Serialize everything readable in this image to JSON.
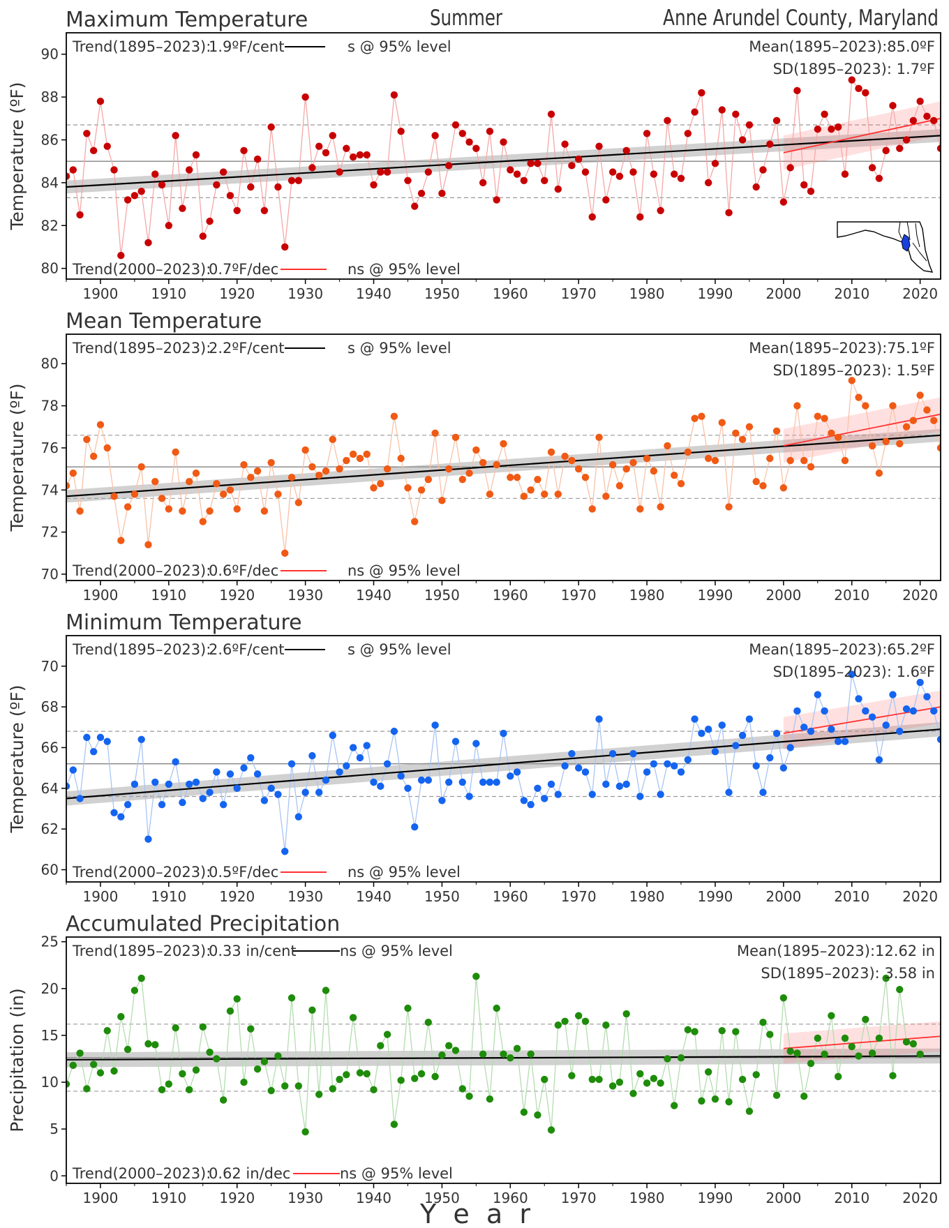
{
  "page": {
    "season": "Summer",
    "location": "Anne Arundel County, Maryland",
    "xlabel": "Y  e  a  r"
  },
  "chart_data": [
    {
      "type": "line",
      "title": "Maximum Temperature",
      "ylabel": "Temperature (ºF)",
      "color": "#c80000",
      "line_color": "#f4a8a8",
      "ylim": [
        79.5,
        91.0
      ],
      "yticks": [
        80,
        82,
        84,
        86,
        88,
        90
      ],
      "xlim": [
        1895,
        2023
      ],
      "xticks": [
        1900,
        1910,
        1920,
        1930,
        1940,
        1950,
        1960,
        1970,
        1980,
        1990,
        2000,
        2010,
        2020
      ],
      "mean": 85.0,
      "sd": 1.7,
      "mean_label": "Mean(1895–2023):85.0ºF",
      "sd_label": "SD(1895–2023): 1.7ºF",
      "trend_long_label": "Trend(1895–2023):",
      "trend_long_value": "1.9ºF/cent",
      "trend_long_sig": "s @ 95% level",
      "trend_short_label": "Trend(2000–2023):",
      "trend_short_value": "0.7ºF/dec",
      "trend_short_sig": "ns @ 95% level",
      "trend_long": {
        "start": 83.8,
        "end": 86.2,
        "band": 0.3
      },
      "trend_short": {
        "start": 85.4,
        "end": 87.0,
        "band": 0.8
      },
      "show_map": true,
      "x_start": 1895,
      "values": [
        84.3,
        84.6,
        82.5,
        86.3,
        85.5,
        87.8,
        85.7,
        84.6,
        80.6,
        83.2,
        83.4,
        83.6,
        81.2,
        84.4,
        83.9,
        82.0,
        86.2,
        82.8,
        84.6,
        85.3,
        81.5,
        82.2,
        83.9,
        84.5,
        83.4,
        82.7,
        85.5,
        83.8,
        85.1,
        82.7,
        86.6,
        83.8,
        81.0,
        84.1,
        84.1,
        88.0,
        84.7,
        85.7,
        85.4,
        86.2,
        84.5,
        85.6,
        85.2,
        85.3,
        85.3,
        83.9,
        84.5,
        84.5,
        88.1,
        86.4,
        84.1,
        82.9,
        83.5,
        84.5,
        86.2,
        83.5,
        84.8,
        86.7,
        86.3,
        85.9,
        85.6,
        84.0,
        86.4,
        83.2,
        85.9,
        84.6,
        84.4,
        84.1,
        84.9,
        84.9,
        84.1,
        87.2,
        83.7,
        85.8,
        84.8,
        85.1,
        84.5,
        82.4,
        85.7,
        83.2,
        84.5,
        84.3,
        85.5,
        84.5,
        82.4,
        86.3,
        84.4,
        82.7,
        86.9,
        84.4,
        84.2,
        86.3,
        87.3,
        88.2,
        84.0,
        84.9,
        87.4,
        82.6,
        87.2,
        86.0,
        86.7,
        83.8,
        84.6,
        85.8,
        86.9,
        83.1,
        84.7,
        88.3,
        83.9,
        83.6,
        86.5,
        87.2,
        86.5,
        86.6,
        84.4,
        88.8,
        88.4,
        88.2,
        84.7,
        84.2,
        85.5,
        87.6,
        85.6,
        86.0,
        86.9,
        87.8,
        87.1,
        86.9,
        85.6
      ]
    },
    {
      "type": "line",
      "title": "Mean Temperature",
      "ylabel": "Temperature (ºF)",
      "color": "#f05a14",
      "line_color": "#f8c2a8",
      "ylim": [
        69.7,
        81.4
      ],
      "yticks": [
        70,
        72,
        74,
        76,
        78,
        80
      ],
      "xlim": [
        1895,
        2023
      ],
      "xticks": [
        1900,
        1910,
        1920,
        1930,
        1940,
        1950,
        1960,
        1970,
        1980,
        1990,
        2000,
        2010,
        2020
      ],
      "mean": 75.1,
      "sd": 1.5,
      "mean_label": "Mean(1895–2023):75.1ºF",
      "sd_label": "SD(1895–2023): 1.5ºF",
      "trend_long_label": "Trend(1895–2023):",
      "trend_long_value": "2.2ºF/cent",
      "trend_long_sig": "s @ 95% level",
      "trend_short_label": "Trend(2000–2023):",
      "trend_short_value": "0.6ºF/dec",
      "trend_short_sig": "ns @ 95% level",
      "trend_long": {
        "start": 73.7,
        "end": 76.6,
        "band": 0.3
      },
      "trend_short": {
        "start": 76.1,
        "end": 77.6,
        "band": 0.8
      },
      "show_map": false,
      "x_start": 1895,
      "values": [
        74.2,
        74.8,
        73.0,
        76.4,
        75.6,
        77.1,
        76.0,
        73.7,
        71.6,
        73.2,
        73.8,
        75.1,
        71.4,
        74.4,
        73.6,
        73.1,
        75.8,
        73.0,
        74.4,
        74.8,
        72.5,
        73.0,
        74.3,
        73.8,
        74.0,
        73.1,
        75.2,
        74.6,
        74.9,
        73.0,
        75.3,
        73.8,
        71.0,
        74.6,
        73.4,
        75.9,
        75.1,
        74.7,
        74.9,
        76.4,
        75.0,
        75.4,
        75.7,
        75.5,
        75.7,
        74.1,
        74.3,
        75.0,
        77.5,
        75.5,
        74.1,
        72.5,
        74.0,
        74.5,
        76.7,
        73.5,
        75.0,
        76.5,
        74.5,
        74.8,
        75.9,
        75.3,
        73.8,
        75.2,
        76.2,
        74.6,
        74.6,
        73.7,
        74.0,
        74.5,
        73.8,
        75.8,
        73.8,
        75.6,
        75.4,
        75.0,
        74.6,
        73.1,
        76.5,
        73.7,
        75.2,
        74.2,
        75.0,
        75.3,
        73.1,
        75.5,
        74.9,
        73.2,
        76.1,
        74.7,
        74.3,
        75.8,
        77.4,
        77.5,
        75.5,
        75.4,
        77.2,
        73.2,
        76.7,
        76.4,
        77.0,
        74.4,
        74.2,
        75.5,
        76.8,
        74.1,
        75.4,
        78.0,
        75.4,
        75.1,
        77.5,
        77.4,
        76.7,
        76.5,
        75.4,
        79.2,
        78.4,
        78.0,
        76.1,
        74.8,
        76.3,
        78.0,
        76.2,
        77.0,
        77.3,
        78.5,
        77.8,
        77.3,
        76.0
      ]
    },
    {
      "type": "line",
      "title": "Minimum Temperature",
      "ylabel": "Temperature (ºF)",
      "color": "#1464f0",
      "line_color": "#a8c4f4",
      "ylim": [
        59.4,
        71.5
      ],
      "yticks": [
        60,
        62,
        64,
        66,
        68,
        70
      ],
      "xlim": [
        1895,
        2023
      ],
      "xticks": [
        1900,
        1910,
        1920,
        1930,
        1940,
        1950,
        1960,
        1970,
        1980,
        1990,
        2000,
        2010,
        2020
      ],
      "mean": 65.2,
      "sd": 1.6,
      "mean_label": "Mean(1895–2023):65.2ºF",
      "sd_label": "SD(1895–2023): 1.6ºF",
      "trend_long_label": "Trend(1895–2023):",
      "trend_long_value": "2.6ºF/cent",
      "trend_long_sig": "s @ 95% level",
      "trend_short_label": "Trend(2000–2023):",
      "trend_short_value": "0.5ºF/dec",
      "trend_short_sig": "ns @ 95% level",
      "trend_long": {
        "start": 63.5,
        "end": 66.9,
        "band": 0.35
      },
      "trend_short": {
        "start": 66.7,
        "end": 68.0,
        "band": 0.8
      },
      "show_map": false,
      "x_start": 1895,
      "values": [
        64.1,
        64.9,
        63.5,
        66.5,
        65.8,
        66.5,
        66.3,
        62.8,
        62.6,
        63.2,
        64.2,
        66.4,
        61.5,
        64.3,
        63.2,
        64.2,
        65.3,
        63.3,
        64.2,
        64.3,
        63.5,
        63.8,
        64.8,
        63.2,
        64.7,
        64.0,
        65.0,
        65.5,
        64.7,
        63.4,
        64.0,
        63.7,
        60.9,
        65.2,
        62.6,
        63.8,
        65.6,
        63.8,
        64.4,
        66.6,
        64.8,
        65.1,
        66.0,
        65.5,
        66.1,
        64.3,
        64.1,
        65.2,
        66.8,
        64.6,
        64.0,
        62.1,
        64.4,
        64.4,
        67.1,
        63.4,
        64.3,
        66.3,
        64.3,
        63.6,
        66.2,
        64.3,
        64.3,
        64.3,
        66.7,
        64.6,
        64.8,
        63.4,
        63.2,
        64.0,
        63.5,
        64.2,
        63.7,
        65.1,
        65.7,
        65.0,
        64.8,
        63.7,
        67.4,
        64.2,
        65.7,
        64.1,
        64.2,
        65.7,
        63.6,
        64.8,
        65.2,
        63.7,
        65.2,
        65.1,
        64.8,
        65.4,
        67.4,
        66.7,
        66.9,
        65.8,
        67.1,
        63.8,
        66.1,
        66.6,
        67.4,
        65.1,
        63.8,
        65.5,
        66.7,
        65.0,
        66.0,
        67.8,
        67.0,
        66.8,
        68.6,
        67.8,
        66.9,
        66.3,
        66.3,
        69.6,
        68.4,
        67.8,
        67.5,
        65.4,
        67.1,
        68.6,
        66.8,
        67.9,
        67.8,
        69.2,
        68.5,
        67.8,
        66.4
      ]
    },
    {
      "type": "line",
      "title": "Accumulated Precipitation",
      "ylabel": "Precipitation (in)",
      "color": "#1e8c0a",
      "line_color": "#b4dcb0",
      "ylim": [
        -0.8,
        25.5
      ],
      "yticks": [
        0,
        5,
        10,
        15,
        20,
        25
      ],
      "xlim": [
        1895,
        2023
      ],
      "xticks": [
        1900,
        1910,
        1920,
        1930,
        1940,
        1950,
        1960,
        1970,
        1980,
        1990,
        2000,
        2010,
        2020
      ],
      "mean": 12.62,
      "sd": 3.58,
      "mean_label": "Mean(1895–2023):12.62 in",
      "sd_label": "SD(1895–2023): 3.58 in",
      "trend_long_label": "Trend(1895–2023):",
      "trend_long_value": "0.33 in/cent",
      "trend_long_sig": "ns @ 95% level",
      "trend_short_label": "Trend(2000–2023):",
      "trend_short_value": "0.62 in/dec",
      "trend_short_sig": "ns @ 95% level",
      "trend_long": {
        "start": 12.4,
        "end": 12.8,
        "band": 0.8
      },
      "trend_short": {
        "start": 13.6,
        "end": 14.9,
        "band": 1.6
      },
      "show_map": false,
      "x_start": 1895,
      "values": [
        9.8,
        11.8,
        13.1,
        9.3,
        11.9,
        11.0,
        15.5,
        11.2,
        17.0,
        13.5,
        19.8,
        21.1,
        14.1,
        14.0,
        9.2,
        9.8,
        15.8,
        10.9,
        9.2,
        11.3,
        15.9,
        13.2,
        12.5,
        8.1,
        17.6,
        18.9,
        10.0,
        15.7,
        11.4,
        12.2,
        9.1,
        12.8,
        9.6,
        19.0,
        9.6,
        4.7,
        17.7,
        8.7,
        19.8,
        9.3,
        10.3,
        10.8,
        16.9,
        11.0,
        10.9,
        9.2,
        13.9,
        15.1,
        5.5,
        10.2,
        17.9,
        10.4,
        10.9,
        16.4,
        10.6,
        12.9,
        13.9,
        13.4,
        9.3,
        8.5,
        21.3,
        13.0,
        8.2,
        17.9,
        13.0,
        12.6,
        13.6,
        6.8,
        13.0,
        6.5,
        10.3,
        4.9,
        16.1,
        16.5,
        10.7,
        17.1,
        16.5,
        10.3,
        10.3,
        16.1,
        9.6,
        10.0,
        17.3,
        8.8,
        10.9,
        9.9,
        10.4,
        9.9,
        12.5,
        7.5,
        12.6,
        15.6,
        15.4,
        8.0,
        11.1,
        8.2,
        15.5,
        7.9,
        15.4,
        10.3,
        6.9,
        10.8,
        16.4,
        15.1,
        8.6,
        19.0,
        13.3,
        13.1,
        8.5,
        12.0,
        14.7,
        13.0,
        17.1,
        10.6,
        14.7,
        13.8,
        12.8,
        16.7,
        13.1,
        14.7,
        21.1,
        10.7,
        19.9,
        14.3,
        14.1,
        13.0
      ]
    }
  ]
}
